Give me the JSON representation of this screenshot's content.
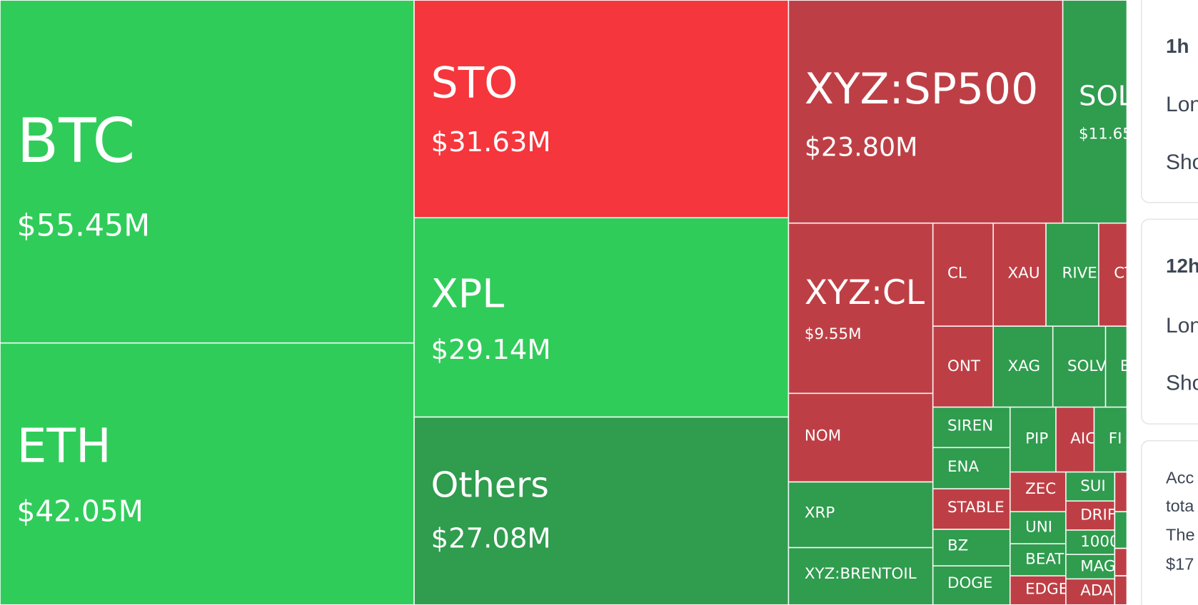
{
  "treemap": {
    "tiles": [
      {
        "label": "BTC",
        "value": "$55.45M",
        "color": "#30cc5a"
      },
      {
        "label": "ETH",
        "value": "$42.05M",
        "color": "#30cc5a"
      },
      {
        "label": "STO",
        "value": "$31.63M",
        "color": "#f5363c"
      },
      {
        "label": "XPL",
        "value": "$29.14M",
        "color": "#30cc5a"
      },
      {
        "label": "Others",
        "value": "$27.08M",
        "color": "#2f9c4e"
      },
      {
        "label": "XYZ:SP500",
        "value": "$23.80M",
        "color": "#bd3f45"
      },
      {
        "label": "SOL",
        "value": "$11.65",
        "color": "#2f9c4e"
      },
      {
        "label": "XYZ:CL",
        "value": "$9.55M",
        "color": "#bd3f45"
      },
      {
        "label": "CL",
        "color": "#bd3f45"
      },
      {
        "label": "XAU",
        "color": "#bd3f45"
      },
      {
        "label": "RIVE",
        "color": "#2f9c4e"
      },
      {
        "label": "CT",
        "color": "#bd3f45"
      },
      {
        "label": "ONT",
        "color": "#bd3f45"
      },
      {
        "label": "XAG",
        "color": "#2f9c4e"
      },
      {
        "label": "SOLV",
        "color": "#2f9c4e"
      },
      {
        "label": "E",
        "color": "#2f9c4e"
      },
      {
        "label": "NOM",
        "color": "#bd3f45"
      },
      {
        "label": "XRP",
        "color": "#2f9c4e"
      },
      {
        "label": "XYZ:BRENTOIL",
        "color": "#2f9c4e"
      },
      {
        "label": "SIREN",
        "color": "#2f9c4e"
      },
      {
        "label": "ENA",
        "color": "#2f9c4e"
      },
      {
        "label": "STABLE",
        "color": "#bd3f45"
      },
      {
        "label": "BZ",
        "color": "#2f9c4e"
      },
      {
        "label": "DOGE",
        "color": "#2f9c4e"
      },
      {
        "label": "PIP",
        "color": "#2f9c4e"
      },
      {
        "label": "AIC",
        "color": "#bd3f45"
      },
      {
        "label": "FI",
        "color": "#2f9c4e"
      },
      {
        "label": "ZEC",
        "color": "#bd3f45"
      },
      {
        "label": "UNI",
        "color": "#2f9c4e"
      },
      {
        "label": "BEAT",
        "color": "#2f9c4e"
      },
      {
        "label": "EDGE",
        "color": "#bd3f45"
      },
      {
        "label": "SUI",
        "color": "#2f9c4e"
      },
      {
        "label": "DRIF",
        "color": "#bd3f45"
      },
      {
        "label": "1000",
        "color": "#2f9c4e"
      },
      {
        "label": "MAG",
        "color": "#2f9c4e"
      },
      {
        "label": "ADA",
        "color": "#bd3f45"
      }
    ]
  },
  "sidebar": {
    "cards": [
      {
        "title": "1h",
        "lines": [
          "Lon",
          "Sho"
        ]
      },
      {
        "title": "12h",
        "lines": [
          "Lon",
          "Sho"
        ]
      },
      {
        "lines": [
          "Acc",
          "tota",
          "The",
          "$17"
        ]
      }
    ]
  }
}
